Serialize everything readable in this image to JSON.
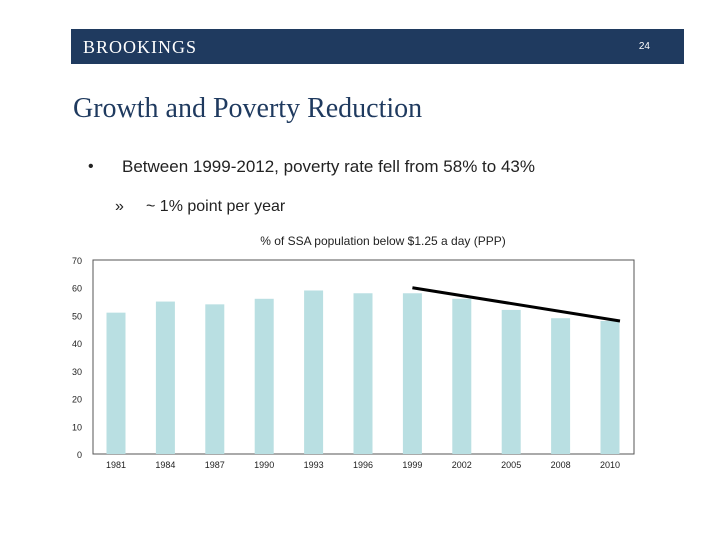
{
  "header": {
    "logo_text": "BROOKINGS",
    "page_number": "24",
    "bg_color": "#1f3a5f"
  },
  "slide": {
    "title": "Growth and Poverty Reduction",
    "bullet1": {
      "marker": "•",
      "text": "Between 1999-2012, poverty rate fell from 58% to 43%"
    },
    "bullet2": {
      "marker": "»",
      "text": "~ 1% point per year"
    }
  },
  "chart_data": {
    "type": "bar",
    "title": "% of SSA population below $1.25 a day (PPP)",
    "categories": [
      "1981",
      "1984",
      "1987",
      "1990",
      "1993",
      "1996",
      "1999",
      "2002",
      "2005",
      "2008",
      "2010"
    ],
    "values": [
      51,
      55,
      54,
      56,
      59,
      58,
      58,
      56,
      52,
      49,
      48
    ],
    "ylim": [
      0,
      70
    ],
    "yticks": [
      0,
      10,
      20,
      30,
      40,
      50,
      60,
      70
    ],
    "grid": false,
    "bar_color": "#b9dfe2",
    "trend_line": {
      "from_category": "1999",
      "from_value": 60,
      "to_category": "2010",
      "to_value": 48,
      "color": "#000000"
    }
  }
}
